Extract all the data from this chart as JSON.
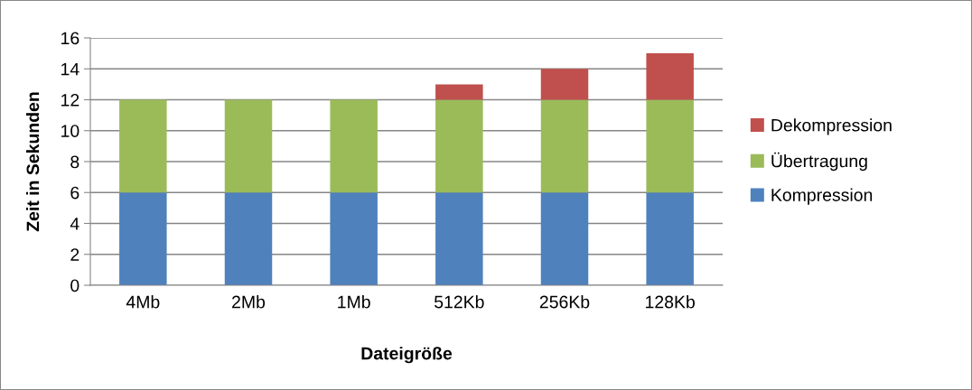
{
  "chart_data": {
    "type": "bar",
    "stacked": true,
    "xlabel": "Dateigröße",
    "ylabel": "Zeit in Sekunden",
    "categories": [
      "4Mb",
      "2Mb",
      "1Mb",
      "512Kb",
      "256Kb",
      "128Kb"
    ],
    "series": [
      {
        "name": "Kompression",
        "color": "#4f81bd",
        "values": [
          6,
          6,
          6,
          6,
          6,
          6
        ]
      },
      {
        "name": "Übertragung",
        "color": "#9bbb59",
        "values": [
          6,
          6,
          6,
          6,
          6,
          6
        ]
      },
      {
        "name": "Dekompression",
        "color": "#c0504d",
        "values": [
          0,
          0,
          0,
          1,
          2,
          3
        ]
      }
    ],
    "ylim": [
      0,
      16
    ],
    "yticks": [
      0,
      2,
      4,
      6,
      8,
      10,
      12,
      14,
      16
    ],
    "grid": "y",
    "legend": "right"
  }
}
